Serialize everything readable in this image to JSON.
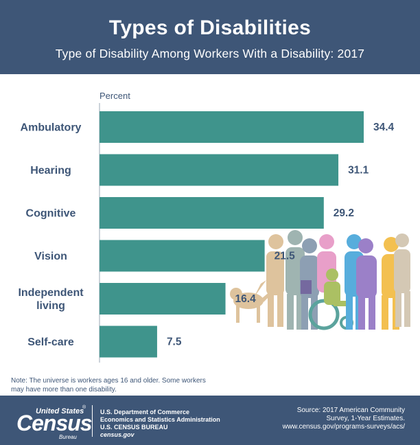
{
  "header": {
    "title": "Types of Disabilities",
    "subtitle": "Type of Disability Among Workers With a Disability: 2017"
  },
  "chart_data": {
    "type": "bar",
    "orientation": "horizontal",
    "title": "Types of Disabilities",
    "subtitle": "Type of Disability Among Workers With a Disability: 2017",
    "axis_title": "Percent",
    "categories": [
      [
        "Ambulatory"
      ],
      [
        "Hearing"
      ],
      [
        "Cognitive"
      ],
      [
        "Vision"
      ],
      [
        "Independent",
        "living"
      ],
      [
        "Self-care"
      ]
    ],
    "values": [
      34.4,
      31.1,
      29.2,
      21.5,
      16.4,
      7.5
    ],
    "value_labels": [
      "34.4",
      "31.1",
      "29.2",
      "21.5",
      "16.4",
      "7.5"
    ],
    "xlim": [
      0,
      40
    ],
    "bar_color": "#3f948c",
    "text_color": "#3e5677"
  },
  "note": {
    "line1": "Note: The universe is workers ages 16 and older. Some workers",
    "line2": "may have more than one disability."
  },
  "footer": {
    "logo_top": "United States",
    "logo_reg": "®",
    "logo_main": "Census",
    "logo_sub": "Bureau",
    "agency_line1": "U.S. Department of Commerce",
    "agency_line2": "Economics and Statistics Administration",
    "agency_line3": "U.S. CENSUS BUREAU",
    "agency_url": "census.gov",
    "source_line1": "Source: 2017 American Community",
    "source_line2": "Survey, 1-Year Estimates.",
    "source_line3": "www.census.gov/programs-surveys/acs/"
  },
  "colors": {
    "header_bg": "#3e5677",
    "bar": "#3f948c",
    "text": "#3e5677"
  }
}
